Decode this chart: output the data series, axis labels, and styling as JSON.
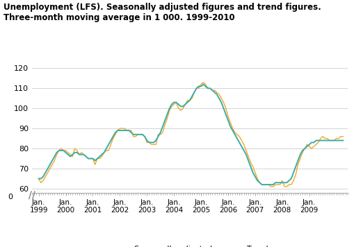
{
  "title": "Unemployment (LFS). Seasonally adjusted figures and trend figures.\nThree-month moving average in 1 000. 1999-2010",
  "sa_color": "#F5A623",
  "trend_color": "#3AADA8",
  "legend_labels": [
    "Seasonally adjusted",
    "Trend"
  ],
  "ylim": [
    58,
    122
  ],
  "yticks": [
    60,
    70,
    80,
    90,
    100,
    110,
    120
  ],
  "background_color": "#ffffff",
  "grid_color": "#cccccc",
  "seasonally_adjusted": [
    65,
    63,
    64,
    66,
    68,
    70,
    72,
    74,
    77,
    79,
    80,
    79,
    79,
    78,
    77,
    76,
    80,
    79,
    77,
    78,
    77,
    76,
    75,
    75,
    75,
    72,
    75,
    75,
    76,
    78,
    79,
    79,
    82,
    85,
    87,
    89,
    90,
    90,
    90,
    89,
    89,
    89,
    86,
    86,
    87,
    87,
    87,
    86,
    83,
    83,
    82,
    82,
    82,
    87,
    87,
    88,
    92,
    95,
    99,
    101,
    102,
    103,
    100,
    99,
    100,
    102,
    104,
    104,
    105,
    108,
    110,
    110,
    112,
    113,
    112,
    110,
    110,
    109,
    109,
    108,
    107,
    105,
    103,
    100,
    96,
    93,
    90,
    88,
    87,
    86,
    84,
    82,
    79,
    76,
    73,
    71,
    68,
    65,
    63,
    62,
    62,
    62,
    62,
    61,
    61,
    62,
    62,
    62,
    64,
    61,
    61,
    62,
    62,
    64,
    67,
    72,
    75,
    78,
    80,
    82,
    81,
    80,
    81,
    82,
    83,
    85,
    86,
    85,
    85,
    84,
    84,
    84,
    85,
    85,
    86,
    86
  ],
  "trend": [
    65,
    65,
    66,
    68,
    70,
    72,
    74,
    76,
    78,
    79,
    79,
    79,
    78,
    77,
    76,
    77,
    78,
    78,
    77,
    77,
    77,
    76,
    75,
    75,
    75,
    74,
    75,
    76,
    77,
    78,
    80,
    82,
    84,
    86,
    88,
    89,
    89,
    89,
    89,
    89,
    89,
    88,
    87,
    87,
    87,
    87,
    87,
    86,
    84,
    83,
    83,
    83,
    84,
    86,
    88,
    91,
    94,
    97,
    100,
    102,
    103,
    103,
    102,
    101,
    101,
    102,
    103,
    104,
    106,
    108,
    110,
    111,
    111,
    112,
    111,
    110,
    110,
    109,
    108,
    107,
    105,
    103,
    100,
    97,
    94,
    91,
    89,
    87,
    85,
    83,
    81,
    79,
    77,
    74,
    71,
    68,
    66,
    64,
    63,
    62,
    62,
    62,
    62,
    62,
    62,
    63,
    63,
    63,
    63,
    63,
    63,
    64,
    65,
    68,
    71,
    74,
    77,
    79,
    80,
    81,
    82,
    83,
    83,
    84,
    84,
    84,
    84,
    84,
    84,
    84,
    84,
    84,
    84,
    84,
    84,
    84
  ],
  "n_months": 136,
  "start_year": 1999
}
